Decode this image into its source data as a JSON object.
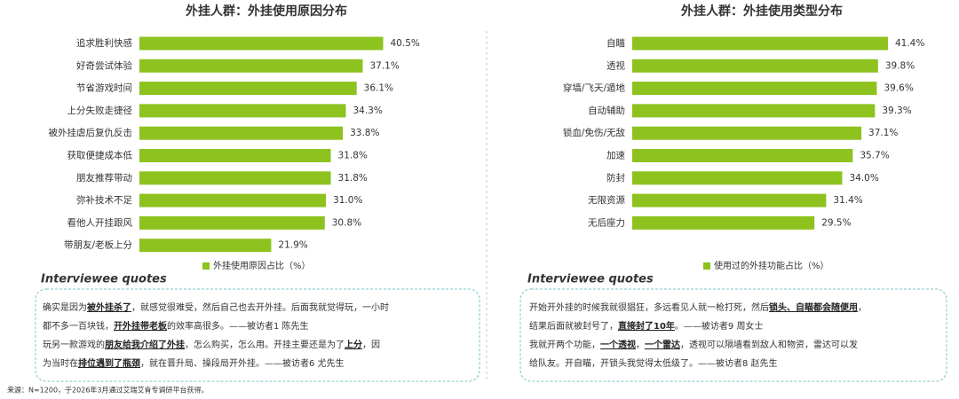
{
  "chart_data": [
    {
      "type": "bar",
      "orientation": "horizontal",
      "title": "外挂人群：外挂使用原因分布",
      "categories": [
        "追求胜利快感",
        "好奇尝试体验",
        "节省游戏时间",
        "上分失败走捷径",
        "被外挂虐后复仇反击",
        "获取便捷成本低",
        "朋友推荐带动",
        "弥补技术不足",
        "看他人开挂跟风",
        "带朋友/老板上分"
      ],
      "series": [
        {
          "name": "外挂使用原因占比（%）",
          "color": "#8dc21f",
          "values": [
            40.5,
            37.1,
            36.1,
            34.3,
            33.8,
            31.8,
            31.8,
            31.0,
            30.8,
            21.9
          ],
          "value_labels": [
            "40.5%",
            "37.1%",
            "36.1%",
            "34.3%",
            "33.8%",
            "31.8%",
            "31.8%",
            "31.0%",
            "30.8%",
            "21.9%"
          ]
        }
      ],
      "xlim": [
        0,
        45
      ]
    },
    {
      "type": "bar",
      "orientation": "horizontal",
      "title": "外挂人群：外挂使用类型分布",
      "categories": [
        "自瞄",
        "透视",
        "穿墙/飞天/遁地",
        "自动辅助",
        "锁血/免伤/无敌",
        "加速",
        "防封",
        "无限资源",
        "无后座力"
      ],
      "series": [
        {
          "name": "使用过的外挂功能占比（%）",
          "color": "#8dc21f",
          "values": [
            41.4,
            39.8,
            39.6,
            39.3,
            37.1,
            35.7,
            34.0,
            31.4,
            29.5
          ],
          "value_labels": [
            "41.4%",
            "39.8%",
            "39.6%",
            "39.3%",
            "37.1%",
            "35.7%",
            "34.0%",
            "31.4%",
            "29.5%"
          ]
        }
      ],
      "xlim": [
        0,
        45
      ]
    }
  ],
  "quotes": [
    {
      "heading": "Interviewee quotes",
      "lines": [
        [
          {
            "text": "确实是因为"
          },
          {
            "text": "被外挂杀了",
            "bold": true
          },
          {
            "text": "，就感觉很难受，然后自己也去开外挂。后面我就觉得玩，一小时"
          }
        ],
        [
          {
            "text": "都不多一百块钱，"
          },
          {
            "text": "开外挂带老板",
            "bold": true
          },
          {
            "text": "的效率高很多。——被访者1 陈先生"
          }
        ],
        [
          {
            "text": "玩另一款游戏的"
          },
          {
            "text": "朋友给我介绍了外挂",
            "bold": true
          },
          {
            "text": "，怎么购买，怎么用。开挂主要还是为了"
          },
          {
            "text": "上分",
            "bold": true
          },
          {
            "text": "，因"
          }
        ],
        [
          {
            "text": "为当时在"
          },
          {
            "text": "排位遇到了瓶颈",
            "bold": true
          },
          {
            "text": "，就在晋升局、操段局开外挂。——被访者6 尤先生"
          }
        ]
      ]
    },
    {
      "heading": "Interviewee quotes",
      "lines": [
        [
          {
            "text": "开始开外挂的时候我就很猖狂，多远看见人就一枪打死，然后"
          },
          {
            "text": "锁头、自瞄都会随便用",
            "bold": true
          },
          {
            "text": "，"
          }
        ],
        [
          {
            "text": "结果后面就被封号了，"
          },
          {
            "text": "直接封了10年",
            "bold": true
          },
          {
            "text": "。——被访者9 周女士"
          }
        ],
        [
          {
            "text": "我就开两个功能，"
          },
          {
            "text": "一个透视",
            "bold": true
          },
          {
            "text": "，"
          },
          {
            "text": "一个雷达",
            "bold": true
          },
          {
            "text": "，透视可以隔墙看到敌人和物资，雷达可以发"
          }
        ],
        [
          {
            "text": "给队友。开自瞄，开锁头我觉得太低级了。——被访者8 赵先生"
          }
        ]
      ]
    }
  ],
  "source": "来源：N=1200，于2026年3月通过艾瑞艾肯专调研平台获得。"
}
